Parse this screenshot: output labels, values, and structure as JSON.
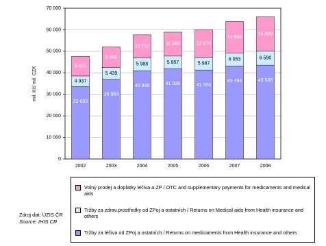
{
  "chart_data": {
    "type": "stacked_bar",
    "y_label": "mil. Kč/ mil. CZK",
    "categories": [
      "2002",
      "2003",
      "2004",
      "2005",
      "2006",
      "2007",
      "2008"
    ],
    "series": [
      {
        "name": "Tržby za léčiva od ZPoj a ostatních / Returns on medicaments from Health insurance and others",
        "color": "#9999ff",
        "values": [
          33600,
          36983,
          40948,
          41936,
          41300,
          43194,
          43533
        ],
        "value_labels": [
          "33 600",
          "36 983",
          "40 948",
          "41 936",
          "41 300",
          "43 194",
          "43 533"
        ]
      },
      {
        "name": "Tržby za zdrav.prostředky od ZPoj a ostatních / Returns on Medical aids from Health insurance and others",
        "color": "#ccecff",
        "values": [
          4937,
          5439,
          5988,
          5857,
          5987,
          6053,
          6590
        ],
        "value_labels": [
          "4 937",
          "5 439",
          "5 988",
          "5 857",
          "5 987",
          "6 053",
          "6 590"
        ]
      },
      {
        "name": "Volný prodej a doplatky léčiva a ZP / OTC and supplementary payments for medicaments and medical aids",
        "color": "#ff99cc",
        "values": [
          9075,
          9640,
          10712,
          11089,
          12676,
          14604,
          15899
        ],
        "value_labels": [
          "9 075",
          "9 640",
          "10 712",
          "11 089",
          "12 676",
          "14 604",
          "15 899"
        ]
      }
    ],
    "ylim": [
      0,
      70000
    ],
    "yticks": [
      0,
      {
        "value": 10000,
        "label": "10 000"
      },
      {
        "value": 20000,
        "label": "20 000"
      },
      {
        "value": 30000,
        "label": "30 000"
      },
      {
        "value": 40000,
        "label": "40 000"
      },
      {
        "value": 50000,
        "label": "50 000"
      },
      {
        "value": 60000,
        "label": "60 000"
      },
      {
        "value": 70000,
        "label": "70 000"
      }
    ],
    "grid": true,
    "source": [
      "Zdroj dat: ÚZIS ČR",
      "Source: IHIS CR"
    ]
  }
}
